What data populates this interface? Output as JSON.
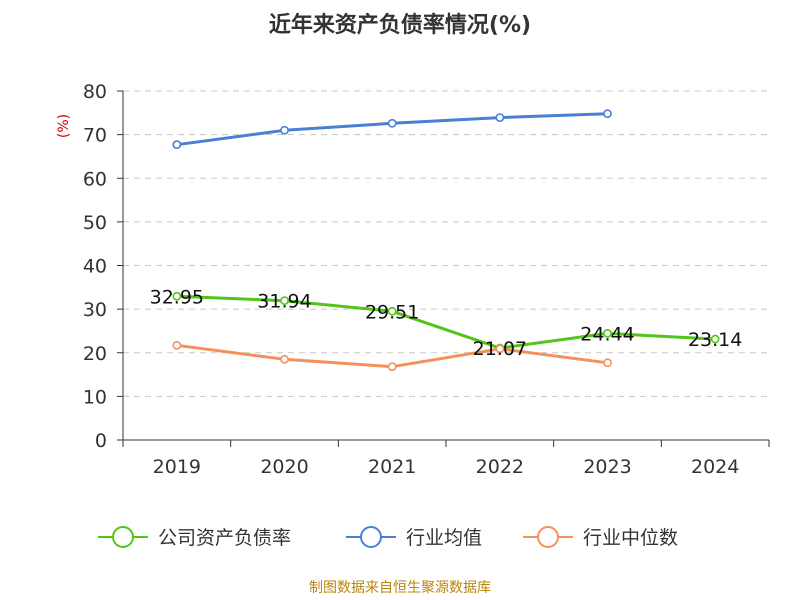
{
  "chart_data": {
    "type": "line",
    "title": "近年来资产负债率情况(%)",
    "ylabel": "(%)",
    "categories": [
      "2019",
      "2020",
      "2021",
      "2022",
      "2023",
      "2024"
    ],
    "ylim": [
      0,
      80
    ],
    "yticks": [
      0,
      10,
      20,
      30,
      40,
      50,
      60,
      70,
      80
    ],
    "grid": true,
    "legend_position": "bottom",
    "series": [
      {
        "name": "公司资产负债率",
        "color": "#52c41a",
        "values": [
          32.95,
          31.94,
          29.51,
          21.07,
          24.44,
          23.14
        ],
        "labels": [
          "32.95",
          "31.94",
          "29.51",
          "21.07",
          "24.44",
          "23.14"
        ]
      },
      {
        "name": "行业均值",
        "color": "#4a7fd6",
        "values": [
          67.7,
          71.0,
          72.6,
          73.9,
          74.8,
          null
        ]
      },
      {
        "name": "行业中位数",
        "color": "#f4905a",
        "values": [
          21.7,
          18.5,
          16.8,
          20.9,
          17.7,
          null
        ]
      }
    ]
  },
  "source_text": "制图数据来自恒生聚源数据库"
}
